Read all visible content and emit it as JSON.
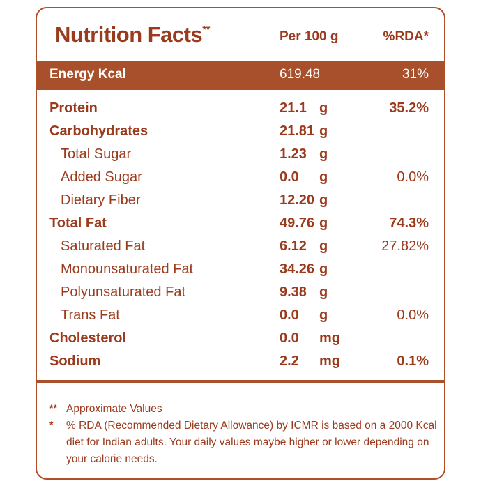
{
  "header": {
    "title": "Nutrition Facts",
    "title_mark": "**",
    "per_label": "Per 100 g",
    "rda_label": "%RDA*"
  },
  "energy": {
    "label": "Energy Kcal",
    "value": "619.48",
    "rda": "31%"
  },
  "rows": [
    {
      "label": "Protein",
      "value": "21.1",
      "unit": "g",
      "rda": "35.2%",
      "level": "main"
    },
    {
      "label": "Carbohydrates",
      "value": "21.81",
      "unit": "g",
      "rda": "",
      "level": "main"
    },
    {
      "label": "Total Sugar",
      "value": "1.23",
      "unit": "g",
      "rda": "",
      "level": "sub"
    },
    {
      "label": "Added Sugar",
      "value": "0.0",
      "unit": "g",
      "rda": "0.0%",
      "level": "sub"
    },
    {
      "label": "Dietary Fiber",
      "value": "12.20",
      "unit": "g",
      "rda": "",
      "level": "sub"
    },
    {
      "label": "Total Fat",
      "value": "49.76",
      "unit": "g",
      "rda": "74.3%",
      "level": "main"
    },
    {
      "label": "Saturated Fat",
      "value": "6.12",
      "unit": "g",
      "rda": "27.82%",
      "level": "sub"
    },
    {
      "label": "Monounsaturated Fat",
      "value": "34.26",
      "unit": "g",
      "rda": "",
      "level": "sub"
    },
    {
      "label": "Polyunsaturated Fat",
      "value": "9.38",
      "unit": "g",
      "rda": "",
      "level": "sub"
    },
    {
      "label": "Trans Fat",
      "value": "0.0",
      "unit": "g",
      "rda": "0.0%",
      "level": "sub"
    },
    {
      "label": "Cholesterol",
      "value": "0.0",
      "unit": "mg",
      "rda": "",
      "level": "main"
    },
    {
      "label": "Sodium",
      "value": "2.2",
      "unit": "mg",
      "rda": "0.1%",
      "level": "main"
    }
  ],
  "footnotes": [
    {
      "mark": "**",
      "text": "Approximate Values"
    },
    {
      "mark": "*",
      "text": "% RDA (Recommended Dietary Allowance) by ICMR is based on a 2000 Kcal diet for Indian adults. Your daily values maybe higher or lower depending on your calorie needs."
    }
  ],
  "colors": {
    "primary": "#a84f2c",
    "text": "#9b3a1c",
    "background": "#ffffff"
  }
}
